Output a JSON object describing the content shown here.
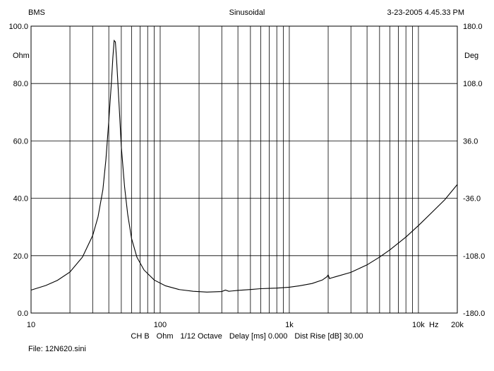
{
  "header": {
    "left": "BMS",
    "center": "Sinusoidal",
    "right": "3-23-2005 4.45.33 PM"
  },
  "status": {
    "channel": "CH B",
    "unit": "Ohm",
    "smoothing": "1/12 Octave",
    "delay": "Delay [ms] 0.000",
    "dist_rise": "Dist Rise [dB] 30.00"
  },
  "file_label": "File: 12N620.sini",
  "chart_data": {
    "type": "line",
    "xscale": "log",
    "xlim": [
      10,
      20000
    ],
    "ylim": [
      0,
      100
    ],
    "y2lim": [
      -180,
      180
    ],
    "xlabel": "Hz",
    "ylabel": "Ohm",
    "y2label": "Deg",
    "grid": true,
    "x_ticks": [
      {
        "v": 10,
        "label": "10"
      },
      {
        "v": 100,
        "label": "100"
      },
      {
        "v": 1000,
        "label": "1k"
      },
      {
        "v": 10000,
        "label": "10k"
      },
      {
        "v": 20000,
        "label": "20k"
      }
    ],
    "y_ticks": [
      {
        "v": 0,
        "label": "0.0"
      },
      {
        "v": 20,
        "label": "20.0"
      },
      {
        "v": 40,
        "label": "40.0"
      },
      {
        "v": 60,
        "label": "60.0"
      },
      {
        "v": 80,
        "label": "80.0"
      },
      {
        "v": 100,
        "label": "100.0"
      }
    ],
    "y2_ticks": [
      {
        "v": -180,
        "label": "-180.0"
      },
      {
        "v": -108,
        "label": "-108.0"
      },
      {
        "v": -36,
        "label": "-36.0"
      },
      {
        "v": 36,
        "label": "36.0"
      },
      {
        "v": 108,
        "label": "108.0"
      },
      {
        "v": 180,
        "label": "180.0"
      }
    ],
    "series": [
      {
        "color": "#000000",
        "x": [
          10,
          13,
          16,
          20,
          25,
          30,
          33,
          36,
          38,
          40,
          42,
          43,
          44,
          45,
          46,
          48,
          50,
          53,
          56,
          60,
          66,
          75,
          90,
          110,
          140,
          180,
          230,
          300,
          320,
          340,
          360,
          400,
          500,
          600,
          700,
          800,
          1000,
          1200,
          1500,
          1800,
          1950,
          2000,
          2050,
          2100,
          2300,
          3000,
          4000,
          5000,
          6000,
          8000,
          10000,
          13000,
          16000,
          20000
        ],
        "y": [
          8.0,
          9.6,
          11.4,
          14.3,
          19.5,
          27.0,
          33.5,
          43.0,
          53.5,
          67.0,
          81.0,
          89.0,
          95.0,
          94.5,
          88.0,
          73.0,
          58.0,
          44.0,
          34.5,
          26.0,
          19.5,
          15.0,
          11.5,
          9.5,
          8.2,
          7.6,
          7.3,
          7.5,
          8.0,
          7.6,
          7.7,
          7.9,
          8.2,
          8.5,
          8.6,
          8.7,
          9.0,
          9.5,
          10.3,
          11.5,
          12.6,
          13.3,
          12.0,
          12.2,
          12.7,
          14.2,
          16.8,
          19.5,
          22.0,
          26.5,
          30.5,
          35.5,
          39.5,
          44.8
        ]
      }
    ]
  }
}
